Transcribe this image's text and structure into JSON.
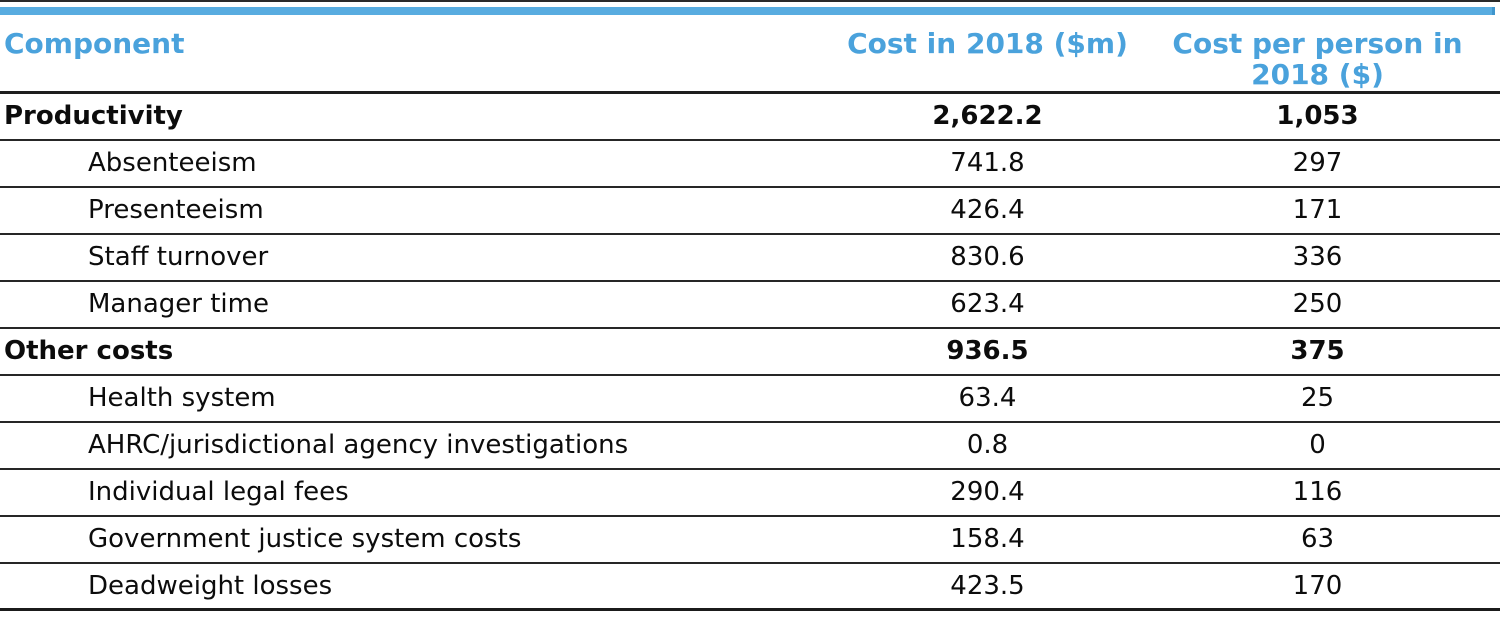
{
  "page": {
    "accent_color": "#4aa2dc",
    "bar_color": "#58ace0",
    "border_color": "#1e1e1e",
    "background": "#ffffff"
  },
  "table": {
    "headers": {
      "component": "Component",
      "cost_2018": "Cost in 2018 ($m)",
      "cost_per_person": "Cost per person in 2018 ($)"
    }
  },
  "chart_data": {
    "type": "table",
    "columns": [
      "Component",
      "Cost in 2018 ($m)",
      "Cost per person in 2018 ($)"
    ],
    "rows": [
      {
        "component": "Productivity",
        "cost_2018_m": "2,622.2",
        "cost_per_person_2018": "1,053",
        "emphasis": "group"
      },
      {
        "component": "Absenteeism",
        "cost_2018_m": "741.8",
        "cost_per_person_2018": "297",
        "emphasis": "sub"
      },
      {
        "component": "Presenteeism",
        "cost_2018_m": "426.4",
        "cost_per_person_2018": "171",
        "emphasis": "sub"
      },
      {
        "component": "Staff turnover",
        "cost_2018_m": "830.6",
        "cost_per_person_2018": "336",
        "emphasis": "sub"
      },
      {
        "component": "Manager time",
        "cost_2018_m": "623.4",
        "cost_per_person_2018": "250",
        "emphasis": "sub"
      },
      {
        "component": "Other costs",
        "cost_2018_m": "936.5",
        "cost_per_person_2018": "375",
        "emphasis": "group"
      },
      {
        "component": "Health system",
        "cost_2018_m": "63.4",
        "cost_per_person_2018": "25",
        "emphasis": "sub"
      },
      {
        "component": "AHRC/jurisdictional agency investigations",
        "cost_2018_m": "0.8",
        "cost_per_person_2018": "0",
        "emphasis": "sub"
      },
      {
        "component": "Individual legal fees",
        "cost_2018_m": "290.4",
        "cost_per_person_2018": "116",
        "emphasis": "sub"
      },
      {
        "component": "Government justice system costs",
        "cost_2018_m": "158.4",
        "cost_per_person_2018": "63",
        "emphasis": "sub"
      },
      {
        "component": "Deadweight losses",
        "cost_2018_m": "423.5",
        "cost_per_person_2018": "170",
        "emphasis": "sub"
      }
    ]
  }
}
